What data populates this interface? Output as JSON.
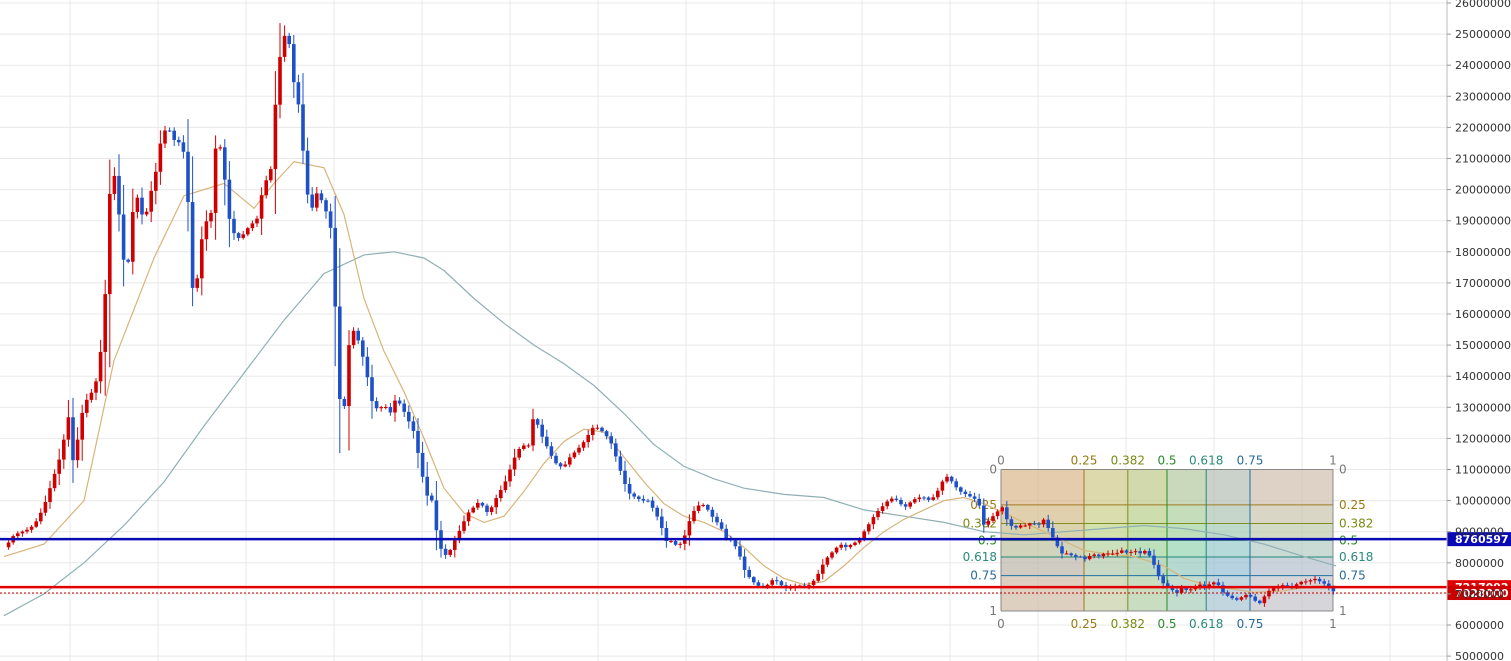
{
  "chart_data": {
    "type": "candlestick",
    "y_axis": {
      "ticks": [
        "26000000",
        "25000000",
        "24000000",
        "23000000",
        "22000000",
        "21000000",
        "20000000",
        "19000000",
        "18000000",
        "17000000",
        "16000000",
        "15000000",
        "14000000",
        "13000000",
        "12000000",
        "11000000",
        "10000000",
        "9000000",
        "8000000",
        "7000000",
        "6000000",
        "5000000"
      ],
      "range": [
        5000000,
        26100000
      ]
    },
    "horizontal_lines": [
      {
        "value": 8760597,
        "label": "8760597",
        "color": "#0a0ab4"
      },
      {
        "value": 7217092,
        "label": "7217092",
        "color": "#e00000"
      },
      {
        "value": 7028000,
        "label": "7028000",
        "color": "#c80000",
        "style": "dotted"
      }
    ],
    "fib_time_labels": [
      "0",
      "0.25",
      "0.382",
      "0.5",
      "0.618",
      "0.75",
      "1"
    ],
    "fib_price_labels": [
      "0",
      "0.25",
      "0.382",
      "0.5",
      "0.618",
      "0.75",
      "1"
    ],
    "colors": {
      "up": "#d00000",
      "down": "#1e50c8",
      "ma_short": "#d8b47a",
      "ma_long": "#8fb0b4",
      "grid": "#e8e8e8"
    },
    "close_path": [
      [
        0,
        8500000
      ],
      [
        6,
        8700000
      ],
      [
        10,
        8900000
      ],
      [
        18,
        9000000
      ],
      [
        26,
        9100000
      ],
      [
        34,
        9400000
      ],
      [
        42,
        10000000
      ],
      [
        50,
        10800000
      ],
      [
        58,
        11600000
      ],
      [
        64,
        12800000
      ],
      [
        70,
        11000000
      ],
      [
        76,
        12600000
      ],
      [
        82,
        13200000
      ],
      [
        88,
        13500000
      ],
      [
        94,
        14000000
      ],
      [
        100,
        15800000
      ],
      [
        106,
        20000000
      ],
      [
        112,
        20600000
      ],
      [
        118,
        17800000
      ],
      [
        124,
        17600000
      ],
      [
        128,
        19200000
      ],
      [
        134,
        19800000
      ],
      [
        140,
        18900000
      ],
      [
        146,
        19800000
      ],
      [
        152,
        20600000
      ],
      [
        158,
        21800000
      ],
      [
        164,
        22000000
      ],
      [
        170,
        21600000
      ],
      [
        176,
        21500000
      ],
      [
        182,
        21000000
      ],
      [
        188,
        16800000
      ],
      [
        194,
        17200000
      ],
      [
        200,
        19100000
      ],
      [
        206,
        18800000
      ],
      [
        212,
        21500000
      ],
      [
        218,
        21300000
      ],
      [
        224,
        19200000
      ],
      [
        230,
        18600000
      ],
      [
        236,
        18400000
      ],
      [
        242,
        18700000
      ],
      [
        248,
        18900000
      ],
      [
        254,
        19100000
      ],
      [
        260,
        20300000
      ],
      [
        266,
        20300000
      ],
      [
        272,
        23000000
      ],
      [
        278,
        24900000
      ],
      [
        284,
        25000000
      ],
      [
        290,
        23400000
      ],
      [
        296,
        22500000
      ],
      [
        302,
        20000000
      ],
      [
        308,
        19400000
      ],
      [
        314,
        20000000
      ],
      [
        320,
        19400000
      ],
      [
        326,
        19100000
      ],
      [
        332,
        15800000
      ],
      [
        338,
        11800000
      ],
      [
        344,
        14900000
      ],
      [
        350,
        15500000
      ],
      [
        356,
        15000000
      ],
      [
        362,
        14200000
      ],
      [
        368,
        13200000
      ],
      [
        374,
        12900000
      ],
      [
        380,
        13100000
      ],
      [
        386,
        12800000
      ],
      [
        392,
        13300000
      ],
      [
        398,
        13000000
      ],
      [
        404,
        12600000
      ],
      [
        410,
        12200000
      ],
      [
        416,
        11200000
      ],
      [
        422,
        10200000
      ],
      [
        428,
        10000000
      ],
      [
        434,
        8700000
      ],
      [
        440,
        8200000
      ],
      [
        446,
        8400000
      ],
      [
        452,
        8800000
      ],
      [
        458,
        9200000
      ],
      [
        464,
        9600000
      ],
      [
        470,
        9800000
      ],
      [
        476,
        10000000
      ],
      [
        482,
        9600000
      ],
      [
        488,
        9800000
      ],
      [
        494,
        10200000
      ],
      [
        500,
        10500000
      ],
      [
        506,
        11000000
      ],
      [
        512,
        11500000
      ],
      [
        518,
        11800000
      ],
      [
        524,
        11700000
      ],
      [
        530,
        12800000
      ],
      [
        536,
        12200000
      ],
      [
        542,
        11800000
      ],
      [
        548,
        11400000
      ],
      [
        554,
        11100000
      ],
      [
        560,
        11100000
      ],
      [
        566,
        11400000
      ],
      [
        572,
        11600000
      ],
      [
        578,
        11800000
      ],
      [
        584,
        12100000
      ],
      [
        590,
        12400000
      ],
      [
        596,
        12300000
      ],
      [
        602,
        12100000
      ],
      [
        608,
        11800000
      ],
      [
        614,
        11200000
      ],
      [
        620,
        10600000
      ],
      [
        626,
        10200000
      ],
      [
        632,
        10100000
      ],
      [
        638,
        10000000
      ],
      [
        644,
        10000000
      ],
      [
        650,
        9700000
      ],
      [
        656,
        9300000
      ],
      [
        662,
        8700000
      ],
      [
        668,
        8700000
      ],
      [
        674,
        8500000
      ],
      [
        680,
        8800000
      ],
      [
        686,
        9400000
      ],
      [
        692,
        9800000
      ],
      [
        698,
        9900000
      ],
      [
        704,
        9700000
      ],
      [
        710,
        9400000
      ],
      [
        716,
        9200000
      ],
      [
        722,
        8800000
      ],
      [
        728,
        8700000
      ],
      [
        734,
        8400000
      ],
      [
        740,
        7800000
      ],
      [
        746,
        7500000
      ],
      [
        752,
        7300000
      ],
      [
        758,
        7200000
      ],
      [
        764,
        7300000
      ],
      [
        770,
        7500000
      ],
      [
        776,
        7300000
      ],
      [
        782,
        7200000
      ],
      [
        788,
        7200000
      ],
      [
        794,
        7300000
      ],
      [
        800,
        7200000
      ],
      [
        806,
        7300000
      ],
      [
        812,
        7500000
      ],
      [
        818,
        7900000
      ],
      [
        824,
        8200000
      ],
      [
        830,
        8400000
      ],
      [
        836,
        8600000
      ],
      [
        842,
        8500000
      ],
      [
        848,
        8600000
      ],
      [
        854,
        8700000
      ],
      [
        860,
        9000000
      ],
      [
        866,
        9300000
      ],
      [
        872,
        9600000
      ],
      [
        878,
        9800000
      ],
      [
        884,
        10000000
      ],
      [
        890,
        10100000
      ],
      [
        896,
        9900000
      ],
      [
        902,
        9800000
      ],
      [
        908,
        10000000
      ],
      [
        914,
        10100000
      ],
      [
        920,
        10100000
      ],
      [
        926,
        10000000
      ],
      [
        932,
        10200000
      ],
      [
        938,
        10600000
      ],
      [
        944,
        10800000
      ],
      [
        950,
        10500000
      ],
      [
        956,
        10300000
      ],
      [
        962,
        10200000
      ],
      [
        968,
        10100000
      ],
      [
        974,
        10000000
      ],
      [
        980,
        9200000
      ],
      [
        986,
        9400000
      ],
      [
        992,
        9600000
      ],
      [
        998,
        9800000
      ],
      [
        1004,
        9300000
      ],
      [
        1010,
        9100000
      ],
      [
        1016,
        9200000
      ],
      [
        1022,
        9200000
      ],
      [
        1028,
        9300000
      ],
      [
        1034,
        9200000
      ],
      [
        1040,
        9400000
      ],
      [
        1046,
        9000000
      ],
      [
        1052,
        8600000
      ],
      [
        1058,
        8300000
      ],
      [
        1064,
        8300000
      ],
      [
        1070,
        8200000
      ],
      [
        1076,
        8200000
      ],
      [
        1082,
        8100000
      ],
      [
        1088,
        8300000
      ],
      [
        1094,
        8200000
      ],
      [
        1100,
        8300000
      ],
      [
        1106,
        8300000
      ],
      [
        1112,
        8300000
      ],
      [
        1118,
        8400000
      ],
      [
        1124,
        8300000
      ],
      [
        1130,
        8400000
      ],
      [
        1136,
        8300000
      ],
      [
        1142,
        8400000
      ],
      [
        1148,
        8100000
      ],
      [
        1154,
        7600000
      ],
      [
        1160,
        7300000
      ],
      [
        1166,
        7200000
      ],
      [
        1172,
        7000000
      ],
      [
        1178,
        7200000
      ],
      [
        1184,
        7100000
      ],
      [
        1190,
        7200000
      ],
      [
        1196,
        7300000
      ],
      [
        1202,
        7200000
      ],
      [
        1208,
        7400000
      ],
      [
        1214,
        7300000
      ],
      [
        1220,
        7000000
      ],
      [
        1226,
        6900000
      ],
      [
        1232,
        6800000
      ],
      [
        1238,
        6900000
      ],
      [
        1244,
        7000000
      ],
      [
        1250,
        6800000
      ],
      [
        1256,
        6700000
      ],
      [
        1262,
        7000000
      ],
      [
        1268,
        7200000
      ],
      [
        1274,
        7200000
      ],
      [
        1280,
        7300000
      ],
      [
        1286,
        7200000
      ],
      [
        1292,
        7300000
      ],
      [
        1298,
        7400000
      ],
      [
        1304,
        7400000
      ],
      [
        1310,
        7500000
      ],
      [
        1316,
        7400000
      ],
      [
        1322,
        7300000
      ],
      [
        1328,
        7100000
      ],
      [
        1332,
        7050000
      ]
    ],
    "ma_short_path": [
      [
        0,
        8200000
      ],
      [
        40,
        8600000
      ],
      [
        80,
        10000000
      ],
      [
        110,
        14500000
      ],
      [
        150,
        17800000
      ],
      [
        180,
        19800000
      ],
      [
        220,
        20200000
      ],
      [
        250,
        19400000
      ],
      [
        270,
        20200000
      ],
      [
        290,
        20900000
      ],
      [
        320,
        20700000
      ],
      [
        340,
        19200000
      ],
      [
        360,
        16500000
      ],
      [
        380,
        14800000
      ],
      [
        400,
        13500000
      ],
      [
        420,
        12000000
      ],
      [
        440,
        10400000
      ],
      [
        460,
        9600000
      ],
      [
        480,
        9300000
      ],
      [
        500,
        9500000
      ],
      [
        520,
        10300000
      ],
      [
        540,
        11200000
      ],
      [
        560,
        11900000
      ],
      [
        580,
        12300000
      ],
      [
        600,
        12200000
      ],
      [
        620,
        11400000
      ],
      [
        640,
        10600000
      ],
      [
        660,
        9900000
      ],
      [
        680,
        9500000
      ],
      [
        700,
        9300000
      ],
      [
        720,
        9000000
      ],
      [
        740,
        8500000
      ],
      [
        760,
        7900000
      ],
      [
        780,
        7500000
      ],
      [
        800,
        7300000
      ],
      [
        820,
        7400000
      ],
      [
        840,
        7900000
      ],
      [
        860,
        8500000
      ],
      [
        880,
        9000000
      ],
      [
        900,
        9400000
      ],
      [
        920,
        9700000
      ],
      [
        940,
        10000000
      ],
      [
        960,
        10100000
      ],
      [
        980,
        9900000
      ],
      [
        1000,
        9600000
      ],
      [
        1020,
        9300000
      ],
      [
        1040,
        9000000
      ],
      [
        1060,
        8700000
      ],
      [
        1080,
        8400000
      ],
      [
        1100,
        8300000
      ],
      [
        1130,
        8200000
      ],
      [
        1160,
        7900000
      ],
      [
        1180,
        7500000
      ],
      [
        1200,
        7300000
      ],
      [
        1220,
        7200000
      ],
      [
        1250,
        7050000
      ],
      [
        1280,
        7100000
      ],
      [
        1310,
        7250000
      ],
      [
        1332,
        7250000
      ]
    ],
    "ma_long_path": [
      [
        0,
        6300000
      ],
      [
        40,
        7000000
      ],
      [
        80,
        8000000
      ],
      [
        120,
        9200000
      ],
      [
        160,
        10600000
      ],
      [
        200,
        12400000
      ],
      [
        240,
        14100000
      ],
      [
        280,
        15800000
      ],
      [
        320,
        17300000
      ],
      [
        360,
        17900000
      ],
      [
        390,
        18000000
      ],
      [
        420,
        17800000
      ],
      [
        440,
        17400000
      ],
      [
        470,
        16500000
      ],
      [
        500,
        15700000
      ],
      [
        530,
        15000000
      ],
      [
        560,
        14400000
      ],
      [
        590,
        13700000
      ],
      [
        620,
        12800000
      ],
      [
        650,
        11800000
      ],
      [
        680,
        11100000
      ],
      [
        710,
        10700000
      ],
      [
        740,
        10400000
      ],
      [
        780,
        10200000
      ],
      [
        820,
        10100000
      ],
      [
        860,
        9700000
      ],
      [
        900,
        9500000
      ],
      [
        940,
        9300000
      ],
      [
        980,
        9000000
      ],
      [
        1020,
        8900000
      ],
      [
        1060,
        9000000
      ],
      [
        1100,
        9100000
      ],
      [
        1140,
        9200000
      ],
      [
        1180,
        9100000
      ],
      [
        1220,
        8900000
      ],
      [
        1260,
        8600000
      ],
      [
        1300,
        8200000
      ],
      [
        1332,
        7900000
      ]
    ]
  }
}
